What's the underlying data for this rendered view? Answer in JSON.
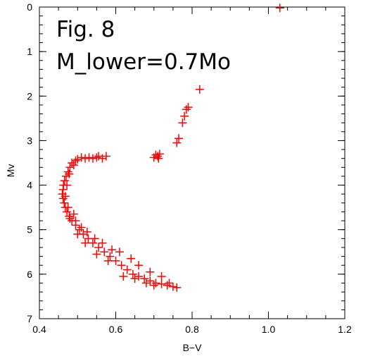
{
  "chart_data": {
    "type": "scatter",
    "marker": "plus",
    "marker_color": "#ff0000",
    "xlabel": "B−V",
    "ylabel": "Mv",
    "xlim": [
      0.4,
      1.2
    ],
    "ylim": [
      7,
      0
    ],
    "y_inverted": true,
    "grid": false,
    "xticks": [
      0.4,
      0.6,
      0.8,
      1.0,
      1.2
    ],
    "xtick_labels": [
      "0.4",
      "0.6",
      "0.8",
      "1.0",
      "1.2"
    ],
    "yticks": [
      0,
      1,
      2,
      3,
      4,
      5,
      6,
      7
    ],
    "ytick_labels": [
      "0",
      "1",
      "2",
      "3",
      "4",
      "5",
      "6",
      "7"
    ],
    "annotations": [
      "Fig. 8",
      "M_lower=0.7Mo"
    ],
    "series": [
      {
        "values_xy": [
          [
            1.03,
            0.02
          ],
          [
            0.82,
            1.85
          ],
          [
            0.79,
            2.25
          ],
          [
            0.785,
            2.3
          ],
          [
            0.78,
            2.45
          ],
          [
            0.775,
            2.6
          ],
          [
            0.765,
            2.95
          ],
          [
            0.76,
            3.05
          ],
          [
            0.715,
            3.3
          ],
          [
            0.71,
            3.35
          ],
          [
            0.705,
            3.32
          ],
          [
            0.712,
            3.4
          ],
          [
            0.7,
            3.38
          ],
          [
            0.575,
            3.35
          ],
          [
            0.565,
            3.4
          ],
          [
            0.555,
            3.35
          ],
          [
            0.55,
            3.38
          ],
          [
            0.54,
            3.4
          ],
          [
            0.53,
            3.38
          ],
          [
            0.52,
            3.4
          ],
          [
            0.51,
            3.38
          ],
          [
            0.5,
            3.42
          ],
          [
            0.495,
            3.45
          ],
          [
            0.485,
            3.5
          ],
          [
            0.48,
            3.6
          ],
          [
            0.475,
            3.7
          ],
          [
            0.47,
            3.8
          ],
          [
            0.466,
            3.9
          ],
          [
            0.463,
            4.0
          ],
          [
            0.462,
            4.1
          ],
          [
            0.46,
            4.2
          ],
          [
            0.462,
            4.3
          ],
          [
            0.465,
            4.4
          ],
          [
            0.468,
            4.5
          ],
          [
            0.472,
            4.6
          ],
          [
            0.478,
            4.7
          ],
          [
            0.485,
            4.8
          ],
          [
            0.495,
            4.9
          ],
          [
            0.505,
            5.0
          ],
          [
            0.515,
            5.1
          ],
          [
            0.528,
            5.2
          ],
          [
            0.54,
            5.3
          ],
          [
            0.555,
            5.4
          ],
          [
            0.57,
            5.5
          ],
          [
            0.585,
            5.6
          ],
          [
            0.6,
            5.7
          ],
          [
            0.615,
            5.8
          ],
          [
            0.63,
            5.9
          ],
          [
            0.645,
            6.0
          ],
          [
            0.66,
            6.05
          ],
          [
            0.675,
            6.1
          ],
          [
            0.69,
            6.15
          ],
          [
            0.705,
            6.2
          ],
          [
            0.72,
            6.22
          ],
          [
            0.735,
            6.25
          ],
          [
            0.75,
            6.28
          ],
          [
            0.76,
            6.3
          ],
          [
            0.62,
            6.05
          ],
          [
            0.58,
            5.7
          ],
          [
            0.55,
            5.55
          ],
          [
            0.52,
            5.3
          ],
          [
            0.5,
            5.1
          ],
          [
            0.48,
            4.75
          ],
          [
            0.475,
            4.5
          ],
          [
            0.468,
            4.25
          ],
          [
            0.472,
            4.0
          ],
          [
            0.478,
            3.75
          ],
          [
            0.49,
            3.55
          ],
          [
            0.65,
            6.1
          ],
          [
            0.68,
            6.2
          ],
          [
            0.7,
            6.25
          ],
          [
            0.74,
            6.2
          ],
          [
            0.72,
            6.05
          ],
          [
            0.69,
            5.95
          ],
          [
            0.66,
            5.8
          ],
          [
            0.64,
            5.65
          ],
          [
            0.61,
            5.5
          ],
          [
            0.59,
            5.45
          ],
          [
            0.565,
            5.3
          ],
          [
            0.545,
            5.2
          ],
          [
            0.525,
            5.05
          ],
          [
            0.51,
            4.95
          ],
          [
            0.495,
            4.8
          ],
          [
            0.49,
            4.65
          ]
        ]
      }
    ]
  }
}
